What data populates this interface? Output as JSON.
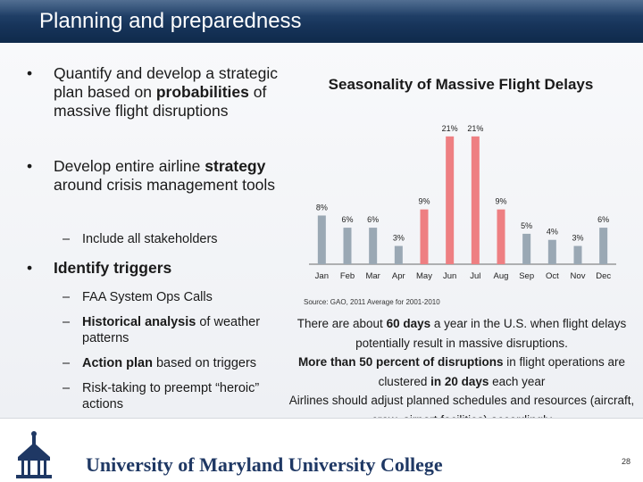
{
  "slide": {
    "title": "Planning and preparedness",
    "page_number": "28",
    "university": "University of Maryland University College"
  },
  "bullets": [
    {
      "level": 1,
      "parts": [
        {
          "t": "Quantify and develop a strategic plan based on "
        },
        {
          "t": "probabilities",
          "b": true
        },
        {
          "t": " of massive flight disruptions"
        }
      ]
    },
    {
      "level": 1,
      "parts": [
        {
          "t": "Develop entire airline "
        },
        {
          "t": "strategy",
          "b": true
        },
        {
          "t": " around crisis management tools"
        }
      ]
    },
    {
      "level": 2,
      "parts": [
        {
          "t": "Include all stakeholders"
        }
      ]
    },
    {
      "level": 1,
      "parts": [
        {
          "t": "Identify triggers",
          "b": true
        }
      ]
    },
    {
      "level": 2,
      "parts": [
        {
          "t": "FAA System Ops Calls"
        }
      ]
    },
    {
      "level": 2,
      "parts": [
        {
          "t": "Historical analysis",
          "b": true
        },
        {
          "t": " of weather patterns"
        }
      ]
    },
    {
      "level": 2,
      "parts": [
        {
          "t": "Action plan",
          "b": true
        },
        {
          "t": " based on triggers"
        }
      ]
    },
    {
      "level": 2,
      "parts": [
        {
          "t": "Risk-taking to preempt “heroic” actions"
        }
      ]
    }
  ],
  "chart_data": {
    "type": "bar",
    "title": "Seasonality of Massive Flight Delays",
    "categories": [
      "Jan",
      "Feb",
      "Mar",
      "Apr",
      "May",
      "Jun",
      "Jul",
      "Aug",
      "Sep",
      "Oct",
      "Nov",
      "Dec"
    ],
    "values": [
      8,
      6,
      6,
      3,
      9,
      21,
      21,
      9,
      5,
      4,
      3,
      6
    ],
    "value_labels": [
      "8%",
      "6%",
      "6%",
      "3%",
      "9%",
      "21%",
      "21%",
      "9%",
      "5%",
      "4%",
      "3%",
      "6%"
    ],
    "ylim": [
      0,
      22
    ],
    "grid": false,
    "colors": {
      "winter": "#9aa8b4",
      "peak": "#ee7f82",
      "other": "#9aa8b4"
    },
    "bar_colors": [
      "#9aa8b4",
      "#9aa8b4",
      "#9aa8b4",
      "#9aa8b4",
      "#ee7f82",
      "#ee7f82",
      "#ee7f82",
      "#ee7f82",
      "#9aa8b4",
      "#9aa8b4",
      "#9aa8b4",
      "#9aa8b4"
    ]
  },
  "source_note": "Source: GAO, 2011 Average for 2001-2010",
  "right_paragraphs": [
    {
      "parts": [
        {
          "t": "There are about "
        },
        {
          "t": "60 days",
          "b": true
        },
        {
          "t": " a year in the U.S. when flight delays potentially result in massive disruptions."
        }
      ]
    },
    {
      "parts": [
        {
          "t": "More than 50 percent of disruptions",
          "b": true
        },
        {
          "t": " in flight operations are clustered "
        },
        {
          "t": "in 20 days",
          "b": true
        },
        {
          "t": " each year"
        }
      ]
    },
    {
      "parts": [
        {
          "t": "Airlines should adjust planned schedules and resources (aircraft, crew, airport facilities) accordingly"
        }
      ]
    }
  ],
  "colors": {
    "header_bg": "#17345a",
    "footer_text": "#1f3864",
    "logo": "#1f3864"
  }
}
